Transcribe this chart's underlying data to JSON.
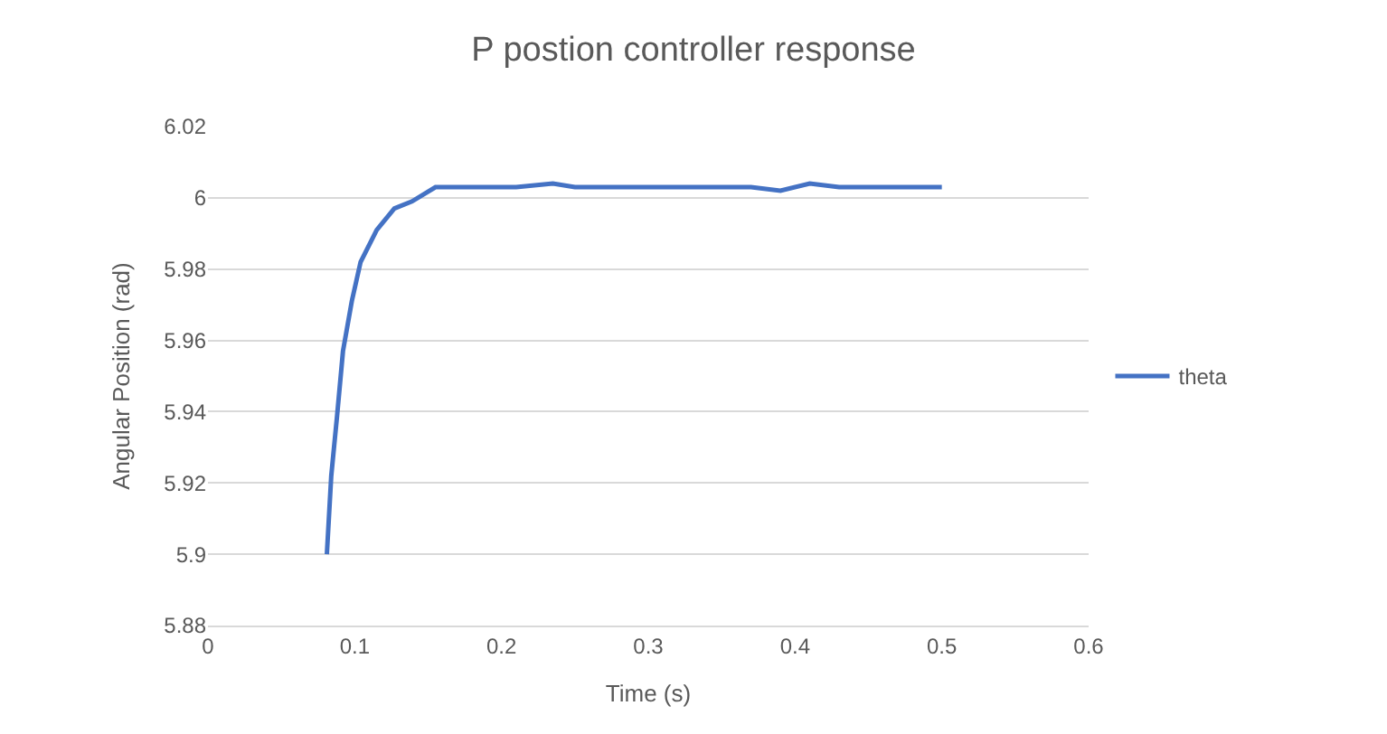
{
  "chart_data": {
    "type": "line",
    "title": "P postion controller response",
    "xlabel": "Time (s)",
    "ylabel": "Angular Position (rad)",
    "x": [
      0.081,
      0.084,
      0.088,
      0.092,
      0.098,
      0.104,
      0.115,
      0.127,
      0.139,
      0.155,
      0.17,
      0.19,
      0.21,
      0.235,
      0.25,
      0.27,
      0.29,
      0.31,
      0.33,
      0.35,
      0.37,
      0.39,
      0.41,
      0.43,
      0.45,
      0.47,
      0.5
    ],
    "series": [
      {
        "name": "theta",
        "color": "#4472c4",
        "values": [
          5.9,
          5.922,
          5.939,
          5.957,
          5.971,
          5.982,
          5.991,
          5.997,
          5.999,
          6.003,
          6.003,
          6.003,
          6.003,
          6.004,
          6.003,
          6.003,
          6.003,
          6.003,
          6.003,
          6.003,
          6.003,
          6.002,
          6.004,
          6.003,
          6.003,
          6.003,
          6.003
        ]
      }
    ],
    "xlim": [
      0,
      0.6
    ],
    "xticks": [
      0,
      0.1,
      0.2,
      0.3,
      0.4,
      0.5,
      0.6
    ],
    "ylim": [
      5.88,
      6.02
    ],
    "yticks": [
      5.88,
      5.9,
      5.92,
      5.94,
      5.96,
      5.98,
      6,
      6.02
    ],
    "grid": "y",
    "legend": "right",
    "marker": "none",
    "line_style": "solid"
  }
}
